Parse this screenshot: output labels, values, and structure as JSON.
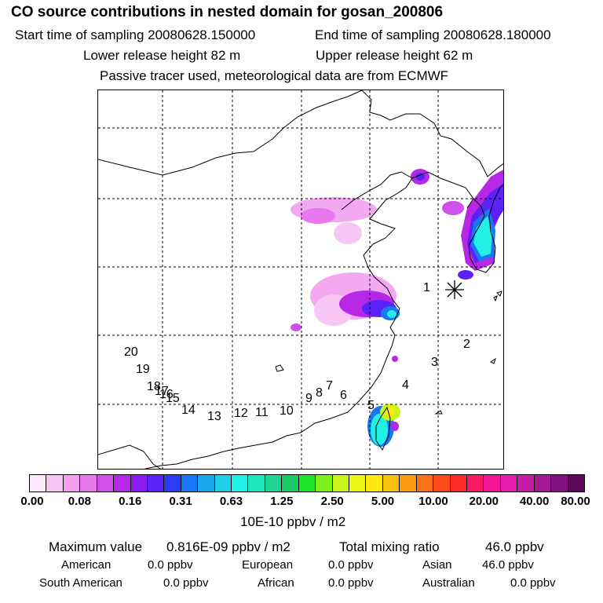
{
  "header": {
    "title": "CO  source contributions in nested domain for gosan_200806",
    "start_time": "Start time of sampling 20080628.150000",
    "end_time": "End time of sampling 20080628.180000",
    "lower_height": "Lower release height   82 m",
    "upper_height": "Upper release height   62 m",
    "tracer_note": "Passive tracer used, meteorological data are from ECMWF"
  },
  "map": {
    "track_labels": [
      "1",
      "2",
      "3",
      "4",
      "5",
      "6",
      "7",
      "8",
      "9",
      "10",
      "11",
      "12",
      "13",
      "14",
      "15",
      "16",
      "17",
      "18",
      "19",
      "20"
    ],
    "receptor": "gosan"
  },
  "colorbar": {
    "colors": [
      "#fde9fb",
      "#f8c6f4",
      "#f2a0ee",
      "#e878eb",
      "#d050ea",
      "#b727e6",
      "#8a1ef0",
      "#5a22f5",
      "#2a3cf5",
      "#1877f2",
      "#19a8ee",
      "#1fcfe8",
      "#22f0e6",
      "#20e6bd",
      "#1ed796",
      "#1cc866",
      "#1de52a",
      "#7ef01c",
      "#c7f519",
      "#eef71a",
      "#fde814",
      "#fdbf14",
      "#fd9a16",
      "#fd7216",
      "#fd4a1a",
      "#fb2a2a",
      "#f71b66",
      "#f21598",
      "#e51cb0",
      "#c81ca8",
      "#a71895",
      "#84127e",
      "#5c0b5c"
    ],
    "tick_labels": [
      "0.00",
      "0.08",
      "0.16",
      "0.31",
      "0.63",
      "1.25",
      "2.50",
      "5.00",
      "10.00",
      "20.00",
      "40.00",
      "80.00"
    ],
    "units": "10E-10 ppbv / m2"
  },
  "stats": {
    "max_label": "Maximum value",
    "max_value": "0.816E-09 ppbv / m2",
    "total_label": "Total mixing ratio",
    "total_value": "46.0 ppbv",
    "regions": [
      {
        "name": "American",
        "value": "0.0 ppbv"
      },
      {
        "name": "European",
        "value": "0.0 ppbv"
      },
      {
        "name": "Asian",
        "value": "46.0 ppbv"
      },
      {
        "name": "South American",
        "value": "0.0 ppbv"
      },
      {
        "name": "African",
        "value": "0.0 ppbv"
      },
      {
        "name": "Australian",
        "value": "0.0 ppbv"
      }
    ]
  }
}
